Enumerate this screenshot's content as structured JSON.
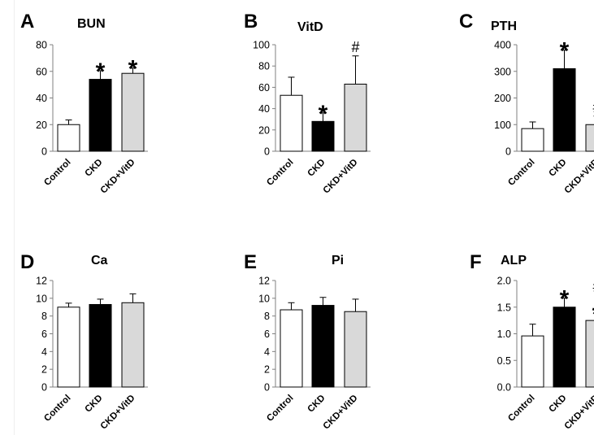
{
  "figure": {
    "categories": [
      "Control",
      "CKD",
      "CKD+VitD"
    ],
    "colors": {
      "Control": "#ffffff",
      "CKD": "#000000",
      "CKD+VitD": "#d9d9d9",
      "stroke": "#000000"
    }
  },
  "chart_data": [
    {
      "panel": "A",
      "title": "BUN",
      "type": "bar",
      "categories": [
        "Control",
        "CKD",
        "CKD+VitD"
      ],
      "values": [
        20,
        54,
        58.5
      ],
      "errors": [
        3.5,
        6.5,
        4
      ],
      "ylim": [
        0,
        80
      ],
      "yticks": [
        0,
        20,
        40,
        60,
        80
      ],
      "ytick_labels": [
        "0",
        "20",
        "40",
        "60",
        "80"
      ],
      "annotations": [
        [],
        [
          "*"
        ],
        [
          "*"
        ]
      ]
    },
    {
      "panel": "B",
      "title": "VitD",
      "type": "bar",
      "categories": [
        "Control",
        "CKD",
        "CKD+VitD"
      ],
      "values": [
        52.5,
        28,
        63
      ],
      "errors": [
        17,
        8,
        26.5
      ],
      "ylim": [
        0,
        100
      ],
      "yticks": [
        0,
        20,
        40,
        60,
        80,
        100
      ],
      "ytick_labels": [
        "0",
        "20",
        "40",
        "60",
        "80",
        "100"
      ],
      "annotations": [
        [],
        [
          "*"
        ],
        [
          "#"
        ]
      ]
    },
    {
      "panel": "C",
      "title": "PTH",
      "type": "bar",
      "categories": [
        "Control",
        "CKD",
        "CKD+VitD"
      ],
      "values": [
        85,
        310,
        100
      ],
      "errors": [
        25,
        70,
        32
      ],
      "ylim": [
        0,
        400
      ],
      "yticks": [
        0,
        100,
        200,
        300,
        400
      ],
      "ytick_labels": [
        "0",
        "100",
        "200",
        "300",
        "400"
      ],
      "annotations": [
        [],
        [
          "*"
        ],
        [
          "#"
        ]
      ]
    },
    {
      "panel": "D",
      "title": "Ca",
      "type": "bar",
      "categories": [
        "Control",
        "CKD",
        "CKD+VitD"
      ],
      "values": [
        9.0,
        9.3,
        9.5
      ],
      "errors": [
        0.45,
        0.6,
        1.0
      ],
      "ylim": [
        0,
        12
      ],
      "yticks": [
        0,
        2,
        4,
        6,
        8,
        10,
        12
      ],
      "ytick_labels": [
        "0",
        "2",
        "4",
        "6",
        "8",
        "10",
        "12"
      ],
      "annotations": [
        [],
        [],
        []
      ]
    },
    {
      "panel": "E",
      "title": "Pi",
      "type": "bar",
      "categories": [
        "Control",
        "CKD",
        "CKD+VitD"
      ],
      "values": [
        8.7,
        9.2,
        8.5
      ],
      "errors": [
        0.8,
        0.9,
        1.4
      ],
      "ylim": [
        0,
        12
      ],
      "yticks": [
        0,
        2,
        4,
        6,
        8,
        10,
        12
      ],
      "ytick_labels": [
        "0",
        "2",
        "4",
        "6",
        "8",
        "10",
        "12"
      ],
      "annotations": [
        [],
        [],
        []
      ]
    },
    {
      "panel": "F",
      "title": "ALP",
      "type": "bar",
      "categories": [
        "Control",
        "CKD",
        "CKD+VitD"
      ],
      "values": [
        0.96,
        1.5,
        1.25
      ],
      "errors": [
        0.22,
        0.17,
        0.13
      ],
      "ylim": [
        0,
        2.0
      ],
      "yticks": [
        0,
        0.5,
        1.0,
        1.5,
        2.0
      ],
      "ytick_labels": [
        "0.0",
        "0.5",
        "1.0",
        "1.5",
        "2.0"
      ],
      "annotations": [
        [],
        [
          "*"
        ],
        [
          "*",
          "#"
        ]
      ]
    }
  ]
}
